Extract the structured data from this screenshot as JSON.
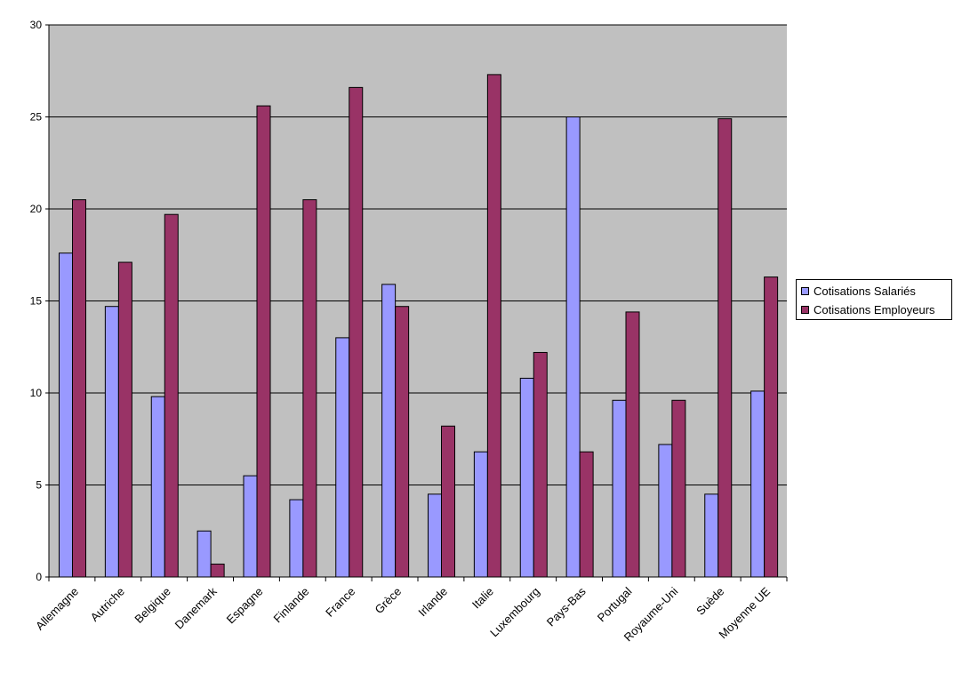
{
  "chart_data": {
    "type": "bar",
    "categories": [
      "Allemagne",
      "Autriche",
      "Belgique",
      "Danemark",
      "Espagne",
      "Finlande",
      "France",
      "Grèce",
      "Irlande",
      "Italie",
      "Luxembourg",
      "Pays-Bas",
      "Portugal",
      "Royaume-Uni",
      "Suède",
      "Moyenne UE"
    ],
    "series": [
      {
        "name": "Cotisations Salariés",
        "color": "#9999ff",
        "values": [
          17.6,
          14.7,
          9.8,
          2.5,
          5.5,
          4.2,
          13.0,
          15.9,
          4.5,
          6.8,
          10.8,
          25.0,
          9.6,
          7.2,
          4.5,
          10.1
        ]
      },
      {
        "name": "Cotisations Employeurs",
        "color": "#993366",
        "values": [
          20.5,
          17.1,
          19.7,
          0.7,
          25.6,
          20.5,
          26.6,
          14.7,
          8.2,
          27.3,
          12.2,
          6.8,
          14.4,
          9.6,
          24.9,
          16.3
        ]
      }
    ],
    "yticks": [
      "0",
      "5",
      "10",
      "15",
      "20",
      "25",
      "30"
    ],
    "ylim": [
      0,
      30
    ],
    "grid": true,
    "plot_background": "#c0c0c0",
    "legend_position": "right"
  }
}
